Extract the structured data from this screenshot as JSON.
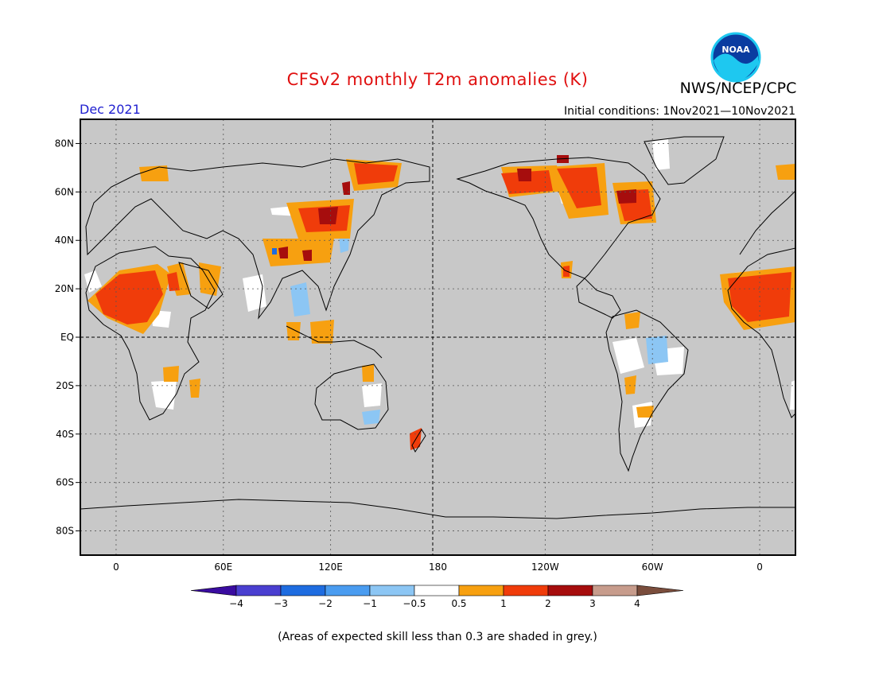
{
  "header": {
    "title": "CFSv2 monthly T2m anomalies (K)",
    "agency": "NWS/NCEP/CPC",
    "logo_text": "NOAA",
    "valid_month": "Dec 2021",
    "initial_conditions": "Initial conditions: 1Nov2021—10Nov2021"
  },
  "map": {
    "background_color": "#c8c8c8",
    "lat_labels": [
      "80N",
      "60N",
      "40N",
      "20N",
      "EQ",
      "20S",
      "40S",
      "60S",
      "80S"
    ],
    "lat_values": [
      80,
      60,
      40,
      20,
      0,
      -20,
      -40,
      -60,
      -80
    ],
    "lon_labels": [
      "0",
      "60E",
      "120E",
      "180",
      "120W",
      "60W",
      "0"
    ],
    "lon_values": [
      0,
      60,
      120,
      180,
      240,
      300,
      360
    ],
    "lon_range": [
      -20,
      380
    ],
    "lat_range": [
      -90,
      90
    ]
  },
  "colorbar": {
    "bins": [
      {
        "color": "#3a0ca0"
      },
      {
        "color": "#4a3fd0"
      },
      {
        "color": "#1e6ce0"
      },
      {
        "color": "#4a9cf0"
      },
      {
        "color": "#8cc6f4"
      },
      {
        "color": "#ffffff"
      },
      {
        "color": "#f7a010"
      },
      {
        "color": "#f03c0a"
      },
      {
        "color": "#a60d0d"
      },
      {
        "color": "#c79c8c"
      },
      {
        "color": "#7a4d3c"
      }
    ],
    "labels": [
      "−4",
      "−3",
      "−2",
      "−1",
      "−0.5",
      "0.5",
      "1",
      "2",
      "3",
      "4"
    ]
  },
  "footnote": "(Areas of expected skill less than 0.3 are shaded in grey.)"
}
